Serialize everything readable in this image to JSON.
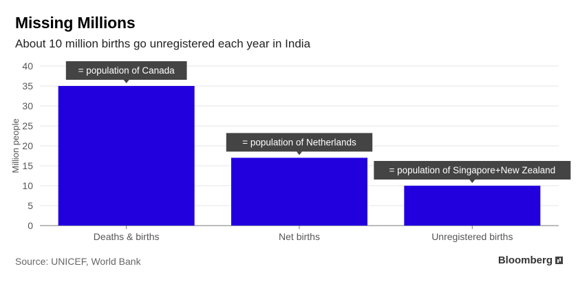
{
  "header": {
    "title": "Missing Millions",
    "subtitle": "About 10 million births go unregistered each year in India"
  },
  "footer": {
    "source": "Source: UNICEF, World Bank",
    "brand": "Bloomberg",
    "brand_icon": "bloomberg-chart-icon"
  },
  "colors": {
    "bar": "#2200dd",
    "annotation_bg": "#444444",
    "annotation_text": "#ffffff",
    "grid": "#e6e6e6",
    "axis_text": "#555555"
  },
  "chart_data": {
    "type": "bar",
    "categories": [
      "Deaths & births",
      "Net births",
      "Unregistered births"
    ],
    "values": [
      35,
      17,
      10
    ],
    "annotations": [
      "= population of Canada",
      "= population of Netherlands",
      "= population of Singapore+New Zealand"
    ],
    "ylabel": "Million people",
    "ylim": [
      0,
      40
    ],
    "yticks": [
      0,
      5,
      10,
      15,
      20,
      25,
      30,
      35,
      40
    ],
    "grid": true
  }
}
